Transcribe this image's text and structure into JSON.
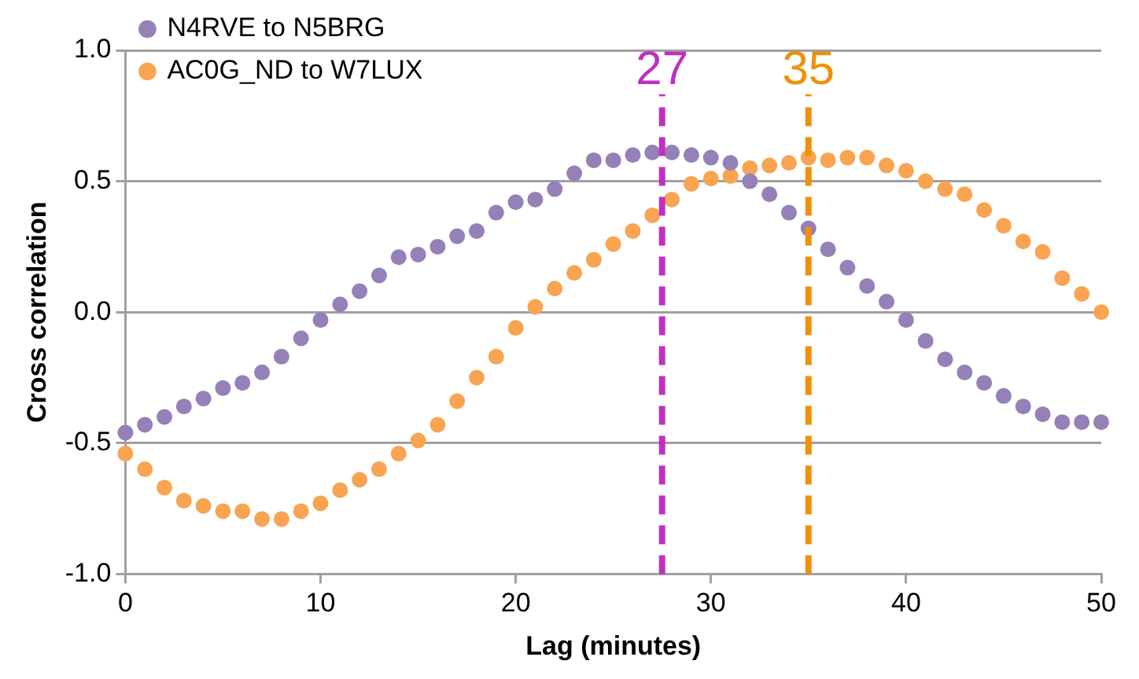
{
  "chart_data": {
    "type": "scatter",
    "xlabel": "Lag (minutes)",
    "ylabel": "Cross correlation",
    "x": [
      0,
      1,
      2,
      3,
      4,
      5,
      6,
      7,
      8,
      9,
      10,
      11,
      12,
      13,
      14,
      15,
      16,
      17,
      18,
      19,
      20,
      21,
      22,
      23,
      24,
      25,
      26,
      27,
      28,
      29,
      30,
      31,
      32,
      33,
      34,
      35,
      36,
      37,
      38,
      39,
      40,
      41,
      42,
      43,
      44,
      45,
      46,
      47,
      48,
      49,
      50
    ],
    "series": [
      {
        "name": "N4RVE to N5BRG",
        "color": "#9580b8",
        "values": [
          -0.46,
          -0.43,
          -0.4,
          -0.36,
          -0.33,
          -0.29,
          -0.27,
          -0.23,
          -0.17,
          -0.1,
          -0.03,
          0.03,
          0.08,
          0.14,
          0.21,
          0.22,
          0.25,
          0.29,
          0.31,
          0.38,
          0.42,
          0.43,
          0.47,
          0.53,
          0.58,
          0.58,
          0.6,
          0.61,
          0.61,
          0.6,
          0.59,
          0.57,
          0.5,
          0.45,
          0.38,
          0.32,
          0.24,
          0.17,
          0.1,
          0.04,
          -0.03,
          -0.11,
          -0.18,
          -0.23,
          -0.27,
          -0.32,
          -0.36,
          -0.39,
          -0.42,
          -0.42,
          -0.42
        ]
      },
      {
        "name": "AC0G_ND to W7LUX",
        "color": "#f8a452",
        "values": [
          -0.54,
          -0.6,
          -0.67,
          -0.72,
          -0.74,
          -0.76,
          -0.76,
          -0.79,
          -0.79,
          -0.76,
          -0.73,
          -0.68,
          -0.64,
          -0.6,
          -0.54,
          -0.49,
          -0.43,
          -0.34,
          -0.25,
          -0.17,
          -0.06,
          0.02,
          0.09,
          0.15,
          0.2,
          0.26,
          0.31,
          0.37,
          0.43,
          0.49,
          0.51,
          0.52,
          0.55,
          0.56,
          0.57,
          0.59,
          0.58,
          0.59,
          0.59,
          0.56,
          0.54,
          0.5,
          0.47,
          0.45,
          0.39,
          0.33,
          0.27,
          0.23,
          0.13,
          0.07,
          0.0
        ]
      }
    ],
    "xlim": [
      0,
      50
    ],
    "xticks": [
      0,
      10,
      20,
      30,
      40,
      50
    ],
    "ylim": [
      -1,
      1
    ],
    "yticks": [
      {
        "value": -1,
        "label": "-1.0"
      },
      {
        "value": -0.5,
        "label": "-0.5"
      },
      {
        "value": 0,
        "label": "0.0"
      },
      {
        "value": 0.5,
        "label": "0.5"
      },
      {
        "value": 1,
        "label": "1.0"
      }
    ],
    "ref_lines": [
      {
        "axis": "x",
        "value": 27.5,
        "label": "27",
        "color": "#c030c0",
        "line_style": "dashed"
      },
      {
        "axis": "x",
        "value": 35,
        "label": "35",
        "color": "#f0900a",
        "line_style": "dashed"
      }
    ],
    "grid": "y",
    "legend": "top left",
    "marker": "circle"
  }
}
